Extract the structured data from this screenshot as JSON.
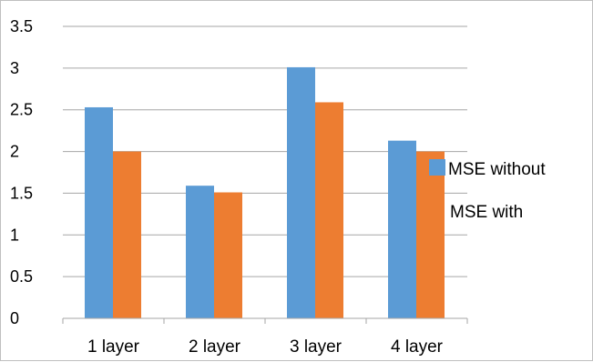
{
  "colors": {
    "series_1": "#5b9bd5",
    "series_2": "#ed7d31",
    "gridline": "#a6a6a6",
    "axis": "#a6a6a6",
    "frame": "#bfbfbf"
  },
  "chart_data": {
    "type": "bar",
    "title": "",
    "xlabel": "",
    "ylabel": "",
    "categories": [
      "1 layer",
      "2 layer",
      "3 layer",
      "4 layer"
    ],
    "series": [
      {
        "name": "MSE without",
        "values": [
          2.53,
          1.59,
          3.01,
          2.13
        ]
      },
      {
        "name": "MSE with",
        "values": [
          2.0,
          1.51,
          2.59,
          2.0
        ]
      }
    ],
    "ylim": [
      0,
      3.5
    ],
    "y_ticks": [
      "0",
      "0.5",
      "1",
      "1.5",
      "2",
      "2.5",
      "3",
      "3.5"
    ],
    "grid": true,
    "legend_position": "right"
  }
}
